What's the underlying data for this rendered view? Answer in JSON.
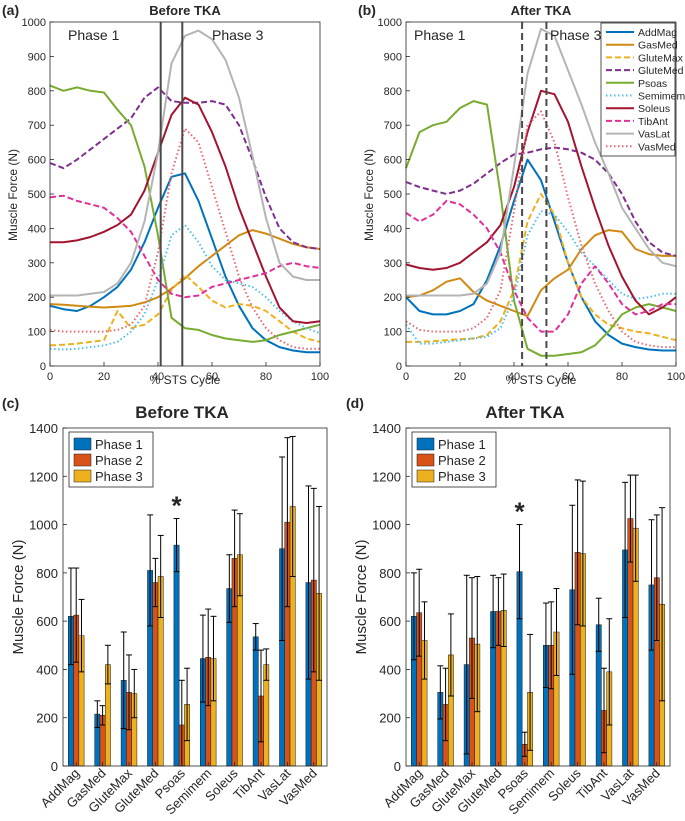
{
  "colors": {
    "AddMag": "#0072BD",
    "GasMed": "#D08A14",
    "GluteMax": "#EDB120",
    "GluteMed": "#7E2F8E",
    "Psoas": "#77AC30",
    "Semimem": "#4DBEEE",
    "Soleus": "#A2142F",
    "TibAnt": "#E0309A",
    "VasLat": "#B4B4B4",
    "VasMed": "#E7676F",
    "phase1": "#0072BD",
    "phase2": "#D95319",
    "phase3": "#EDB120"
  },
  "chart_data": [
    {
      "panel": "(a)",
      "type": "line",
      "title": "Before TKA",
      "xlabel": "% STS Cycle",
      "ylabel": "Muscle Force (N)",
      "xlim": [
        0,
        100
      ],
      "ylim": [
        0,
        1000
      ],
      "xticks": [
        0,
        20,
        40,
        60,
        80,
        100
      ],
      "yticks": [
        0,
        100,
        200,
        300,
        400,
        500,
        600,
        700,
        800,
        900,
        1000
      ],
      "phase_labels": [
        "Phase 1",
        "Phase 3"
      ],
      "phase_boundaries": [
        41,
        49
      ],
      "boundary_style": "solid",
      "x": [
        0,
        5,
        10,
        15,
        20,
        25,
        30,
        35,
        40,
        45,
        50,
        55,
        60,
        65,
        70,
        75,
        80,
        85,
        90,
        95,
        100
      ],
      "series": [
        {
          "name": "AddMag",
          "values": [
            175,
            165,
            160,
            175,
            200,
            230,
            280,
            360,
            460,
            550,
            560,
            480,
            370,
            260,
            175,
            110,
            75,
            55,
            45,
            40,
            40
          ]
        },
        {
          "name": "GasMed",
          "values": [
            180,
            178,
            175,
            172,
            170,
            172,
            175,
            185,
            200,
            225,
            255,
            290,
            320,
            350,
            380,
            395,
            385,
            370,
            355,
            345,
            340
          ]
        },
        {
          "name": "GluteMax",
          "values": [
            60,
            62,
            65,
            70,
            75,
            160,
            110,
            120,
            150,
            220,
            265,
            230,
            190,
            170,
            180,
            175,
            160,
            130,
            100,
            80,
            70
          ]
        },
        {
          "name": "GluteMed",
          "values": [
            590,
            575,
            600,
            630,
            660,
            690,
            720,
            780,
            810,
            770,
            765,
            765,
            770,
            760,
            700,
            600,
            490,
            400,
            360,
            345,
            340
          ]
        },
        {
          "name": "Psoas",
          "values": [
            815,
            800,
            810,
            800,
            795,
            745,
            700,
            580,
            380,
            140,
            110,
            105,
            90,
            80,
            75,
            70,
            75,
            90,
            100,
            110,
            120
          ]
        },
        {
          "name": "Semimem",
          "values": [
            50,
            48,
            50,
            55,
            60,
            70,
            100,
            150,
            250,
            380,
            410,
            360,
            290,
            250,
            240,
            230,
            200,
            160,
            130,
            110,
            95
          ]
        },
        {
          "name": "Soleus",
          "values": [
            360,
            360,
            365,
            375,
            390,
            410,
            440,
            510,
            620,
            730,
            780,
            760,
            680,
            580,
            460,
            360,
            260,
            170,
            130,
            125,
            130
          ]
        },
        {
          "name": "TibAnt",
          "values": [
            490,
            495,
            480,
            470,
            460,
            430,
            390,
            320,
            250,
            210,
            200,
            205,
            230,
            240,
            250,
            260,
            270,
            290,
            300,
            290,
            285
          ]
        },
        {
          "name": "VasLat",
          "values": [
            205,
            205,
            205,
            210,
            215,
            240,
            300,
            420,
            620,
            880,
            960,
            975,
            950,
            890,
            780,
            610,
            430,
            300,
            260,
            250,
            250
          ]
        },
        {
          "name": "VasMed",
          "values": [
            105,
            100,
            100,
            100,
            100,
            105,
            120,
            175,
            330,
            560,
            690,
            650,
            520,
            390,
            260,
            170,
            110,
            75,
            55,
            50,
            50
          ]
        }
      ]
    },
    {
      "panel": "(b)",
      "type": "line",
      "title": "After TKA",
      "xlabel": "% STS Cycle",
      "ylabel": "Muscle Force (N)",
      "xlim": [
        0,
        100
      ],
      "ylim": [
        0,
        1000
      ],
      "xticks": [
        0,
        20,
        40,
        60,
        80,
        100
      ],
      "yticks": [
        0,
        100,
        200,
        300,
        400,
        500,
        600,
        700,
        800,
        900,
        1000
      ],
      "phase_labels": [
        "Phase 1",
        "Phase 3"
      ],
      "phase_boundaries": [
        43,
        52
      ],
      "boundary_style": "dashed",
      "legend": "top-right",
      "x": [
        0,
        5,
        10,
        15,
        20,
        25,
        30,
        35,
        40,
        45,
        50,
        55,
        60,
        65,
        70,
        75,
        80,
        85,
        90,
        95,
        100
      ],
      "series": [
        {
          "name": "AddMag",
          "values": [
            200,
            160,
            150,
            150,
            160,
            180,
            250,
            350,
            480,
            600,
            540,
            420,
            300,
            200,
            130,
            90,
            65,
            55,
            48,
            45,
            45
          ]
        },
        {
          "name": "GasMed",
          "values": [
            200,
            205,
            220,
            245,
            255,
            215,
            190,
            175,
            160,
            145,
            220,
            255,
            280,
            340,
            380,
            395,
            390,
            340,
            325,
            320,
            320
          ]
        },
        {
          "name": "GluteMax",
          "values": [
            70,
            70,
            72,
            75,
            78,
            80,
            90,
            130,
            220,
            420,
            500,
            440,
            300,
            200,
            150,
            120,
            110,
            100,
            95,
            85,
            75
          ]
        },
        {
          "name": "GluteMed",
          "values": [
            535,
            520,
            510,
            500,
            510,
            530,
            560,
            590,
            615,
            620,
            630,
            635,
            630,
            620,
            600,
            560,
            500,
            420,
            360,
            330,
            320
          ]
        },
        {
          "name": "Psoas",
          "values": [
            575,
            680,
            700,
            710,
            750,
            770,
            760,
            500,
            190,
            50,
            30,
            30,
            35,
            40,
            60,
            100,
            150,
            170,
            180,
            170,
            160
          ]
        },
        {
          "name": "Semimem",
          "values": [
            120,
            65,
            65,
            70,
            75,
            80,
            85,
            110,
            200,
            380,
            450,
            440,
            390,
            330,
            290,
            250,
            210,
            195,
            200,
            210,
            210
          ]
        },
        {
          "name": "Soleus",
          "values": [
            295,
            285,
            280,
            285,
            300,
            330,
            360,
            410,
            520,
            680,
            800,
            790,
            710,
            580,
            460,
            350,
            260,
            190,
            150,
            170,
            200
          ]
        },
        {
          "name": "TibAnt",
          "values": [
            445,
            420,
            440,
            480,
            470,
            440,
            400,
            330,
            220,
            140,
            100,
            100,
            150,
            240,
            290,
            240,
            180,
            150,
            160,
            180,
            180
          ]
        },
        {
          "name": "VasLat",
          "values": [
            205,
            205,
            205,
            205,
            205,
            210,
            240,
            330,
            580,
            850,
            980,
            960,
            860,
            760,
            650,
            560,
            460,
            400,
            340,
            300,
            290
          ]
        },
        {
          "name": "VasMed",
          "values": [
            130,
            105,
            100,
            100,
            100,
            110,
            140,
            220,
            450,
            700,
            740,
            650,
            490,
            350,
            240,
            160,
            100,
            70,
            60,
            55,
            55
          ]
        }
      ]
    },
    {
      "panel": "(c)",
      "type": "bar",
      "title": "Before TKA",
      "ylabel": "Muscle Force (N)",
      "ylim": [
        0,
        1400
      ],
      "yticks": [
        0,
        200,
        400,
        600,
        800,
        1000,
        1200,
        1400
      ],
      "legend": "top-left",
      "categories": [
        "AddMag",
        "GasMed",
        "GluteMax",
        "GluteMed",
        "Psoas",
        "Semimem",
        "Soleus",
        "TibAnt",
        "VasLat",
        "VasMed"
      ],
      "significant": [
        "Psoas"
      ],
      "significance_marker": "*",
      "series": [
        {
          "name": "Phase 1",
          "values": [
            620,
            215,
            355,
            810,
            915,
            445,
            735,
            535,
            900,
            760
          ],
          "err": [
            200,
            55,
            200,
            230,
            110,
            180,
            140,
            55,
            380,
            400
          ]
        },
        {
          "name": "Phase 2",
          "values": [
            625,
            210,
            305,
            760,
            170,
            450,
            860,
            290,
            1010,
            770
          ],
          "err": [
            195,
            40,
            155,
            100,
            185,
            200,
            200,
            190,
            350,
            380
          ]
        },
        {
          "name": "Phase 3",
          "values": [
            540,
            420,
            300,
            785,
            255,
            445,
            875,
            420,
            1075,
            715
          ],
          "err": [
            150,
            80,
            100,
            170,
            150,
            175,
            170,
            65,
            290,
            360
          ]
        }
      ]
    },
    {
      "panel": "(d)",
      "type": "bar",
      "title": "After TKA",
      "ylabel": "Muscle Force (N)",
      "ylim": [
        0,
        1400
      ],
      "yticks": [
        0,
        200,
        400,
        600,
        800,
        1000,
        1200,
        1400
      ],
      "legend": "top-left",
      "categories": [
        "AddMag",
        "GasMed",
        "GluteMax",
        "GluteMed",
        "Psoas",
        "Semimem",
        "Soleus",
        "TibAnt",
        "VasLat",
        "VasMed"
      ],
      "significant": [
        "Psoas"
      ],
      "significance_marker": "*",
      "series": [
        {
          "name": "Phase 1",
          "values": [
            620,
            305,
            420,
            640,
            805,
            500,
            730,
            585,
            895,
            750
          ],
          "err": [
            180,
            110,
            370,
            150,
            195,
            175,
            350,
            110,
            280,
            270
          ]
        },
        {
          "name": "Phase 2",
          "values": [
            635,
            255,
            530,
            640,
            90,
            500,
            885,
            230,
            1025,
            780
          ],
          "err": [
            180,
            150,
            250,
            140,
            50,
            180,
            300,
            175,
            180,
            260
          ]
        },
        {
          "name": "Phase 3",
          "values": [
            520,
            460,
            505,
            645,
            305,
            555,
            880,
            390,
            985,
            670
          ],
          "err": [
            160,
            170,
            280,
            150,
            240,
            180,
            300,
            220,
            220,
            400
          ]
        }
      ]
    }
  ]
}
